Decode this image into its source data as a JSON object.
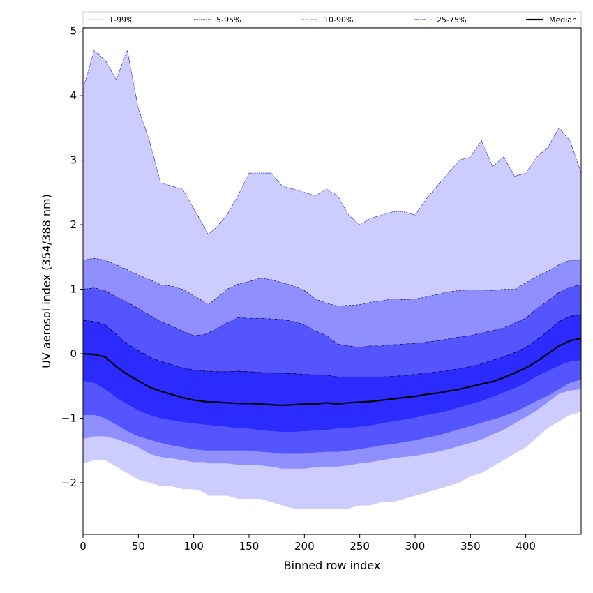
{
  "chart_data": {
    "type": "area",
    "xlabel": "Binned row index",
    "ylabel": "UV aerosol index (354/388 nm)",
    "xlim": [
      0,
      450
    ],
    "ylim": [
      -2.8,
      5.05
    ],
    "xticks": [
      0,
      50,
      100,
      150,
      200,
      250,
      300,
      350,
      400
    ],
    "yticks": [
      -2,
      -1,
      0,
      1,
      2,
      3,
      4,
      5
    ],
    "ytick_labels": [
      "−2",
      "−1",
      "0",
      "1",
      "2",
      "3",
      "4",
      "5"
    ],
    "grid": false,
    "legend_position": "top, spanning width",
    "legend": [
      {
        "label": "1-99%",
        "color": "#ccccff",
        "style": "solid"
      },
      {
        "label": "5-95%",
        "color": "#0000cc",
        "style": "dotted"
      },
      {
        "label": "10-90%",
        "color": "#8f8fff",
        "style": "dashed"
      },
      {
        "label": "25-75%",
        "color": "#5555ff",
        "style": "dashdot"
      },
      {
        "label": "Median",
        "color": "#000000",
        "style": "solid"
      }
    ],
    "x": [
      0,
      10,
      20,
      30,
      40,
      50,
      60,
      70,
      80,
      90,
      100,
      110,
      113,
      120,
      130,
      140,
      150,
      160,
      170,
      180,
      190,
      200,
      210,
      220,
      230,
      240,
      250,
      260,
      270,
      280,
      290,
      300,
      310,
      320,
      330,
      340,
      350,
      360,
      370,
      380,
      390,
      400,
      410,
      420,
      430,
      440,
      450
    ],
    "bands": [
      {
        "name": "1-99%",
        "color": "#ccccff",
        "upper": [
          4.1,
          4.7,
          4.55,
          4.25,
          4.7,
          3.8,
          3.3,
          2.65,
          2.6,
          2.55,
          2.25,
          1.95,
          1.85,
          1.95,
          2.15,
          2.45,
          2.8,
          2.8,
          2.8,
          2.6,
          2.55,
          2.5,
          2.45,
          2.55,
          2.45,
          2.15,
          2.0,
          2.1,
          2.15,
          2.2,
          2.2,
          2.15,
          2.4,
          2.6,
          2.8,
          3.0,
          3.05,
          3.3,
          2.9,
          3.05,
          2.75,
          2.8,
          3.05,
          3.2,
          3.5,
          3.3,
          2.8
        ],
        "lower": [
          -1.7,
          -1.65,
          -1.65,
          -1.75,
          -1.85,
          -1.95,
          -2.0,
          -2.05,
          -2.05,
          -2.1,
          -2.1,
          -2.15,
          -2.2,
          -2.2,
          -2.2,
          -2.25,
          -2.25,
          -2.25,
          -2.3,
          -2.35,
          -2.4,
          -2.4,
          -2.4,
          -2.4,
          -2.4,
          -2.4,
          -2.35,
          -2.35,
          -2.3,
          -2.3,
          -2.25,
          -2.2,
          -2.15,
          -2.1,
          -2.05,
          -2.0,
          -1.9,
          -1.85,
          -1.75,
          -1.65,
          -1.55,
          -1.45,
          -1.3,
          -1.15,
          -1.05,
          -0.95,
          -0.9
        ]
      },
      {
        "name": "5-95%",
        "color": "#8f8fff",
        "upper": [
          1.45,
          1.48,
          1.45,
          1.38,
          1.3,
          1.22,
          1.15,
          1.07,
          1.05,
          1.0,
          0.9,
          0.8,
          0.76,
          0.85,
          1.0,
          1.08,
          1.12,
          1.17,
          1.15,
          1.1,
          1.05,
          0.98,
          0.85,
          0.78,
          0.74,
          0.75,
          0.76,
          0.8,
          0.82,
          0.85,
          0.84,
          0.85,
          0.88,
          0.92,
          0.96,
          0.98,
          0.99,
          0.99,
          0.98,
          1.0,
          1.0,
          1.1,
          1.2,
          1.28,
          1.38,
          1.45,
          1.45
        ],
        "lower": [
          -1.32,
          -1.28,
          -1.28,
          -1.32,
          -1.38,
          -1.45,
          -1.55,
          -1.6,
          -1.62,
          -1.65,
          -1.68,
          -1.68,
          -1.7,
          -1.7,
          -1.7,
          -1.72,
          -1.72,
          -1.73,
          -1.75,
          -1.78,
          -1.78,
          -1.78,
          -1.76,
          -1.75,
          -1.75,
          -1.73,
          -1.7,
          -1.68,
          -1.65,
          -1.62,
          -1.6,
          -1.58,
          -1.55,
          -1.52,
          -1.48,
          -1.43,
          -1.38,
          -1.33,
          -1.25,
          -1.18,
          -1.08,
          -0.98,
          -0.88,
          -0.75,
          -0.62,
          -0.57,
          -0.55
        ]
      },
      {
        "name": "10-90%",
        "color": "#5555ff",
        "upper": [
          1.0,
          1.02,
          0.98,
          0.88,
          0.8,
          0.7,
          0.6,
          0.5,
          0.43,
          0.35,
          0.28,
          0.3,
          0.32,
          0.38,
          0.48,
          0.56,
          0.55,
          0.55,
          0.54,
          0.53,
          0.5,
          0.45,
          0.35,
          0.28,
          0.15,
          0.12,
          0.1,
          0.12,
          0.12,
          0.14,
          0.15,
          0.16,
          0.18,
          0.2,
          0.23,
          0.26,
          0.28,
          0.32,
          0.36,
          0.4,
          0.48,
          0.55,
          0.7,
          0.82,
          0.95,
          1.03,
          1.07
        ],
        "lower": [
          -0.95,
          -0.95,
          -1.0,
          -1.1,
          -1.2,
          -1.28,
          -1.33,
          -1.38,
          -1.42,
          -1.45,
          -1.48,
          -1.5,
          -1.5,
          -1.5,
          -1.5,
          -1.5,
          -1.5,
          -1.52,
          -1.53,
          -1.55,
          -1.55,
          -1.55,
          -1.53,
          -1.52,
          -1.52,
          -1.5,
          -1.48,
          -1.45,
          -1.42,
          -1.4,
          -1.37,
          -1.34,
          -1.3,
          -1.27,
          -1.22,
          -1.17,
          -1.12,
          -1.07,
          -1.02,
          -0.97,
          -0.9,
          -0.82,
          -0.73,
          -0.65,
          -0.55,
          -0.45,
          -0.4
        ]
      },
      {
        "name": "25-75%",
        "color": "#2b2bff",
        "upper": [
          0.52,
          0.5,
          0.45,
          0.3,
          0.15,
          0.05,
          -0.05,
          -0.12,
          -0.17,
          -0.22,
          -0.25,
          -0.27,
          -0.27,
          -0.28,
          -0.28,
          -0.27,
          -0.28,
          -0.29,
          -0.3,
          -0.3,
          -0.31,
          -0.32,
          -0.33,
          -0.33,
          -0.36,
          -0.36,
          -0.36,
          -0.36,
          -0.36,
          -0.35,
          -0.34,
          -0.32,
          -0.3,
          -0.28,
          -0.26,
          -0.23,
          -0.2,
          -0.16,
          -0.1,
          -0.05,
          0.02,
          0.1,
          0.22,
          0.35,
          0.5,
          0.58,
          0.6
        ],
        "lower": [
          -0.42,
          -0.45,
          -0.55,
          -0.68,
          -0.78,
          -0.88,
          -0.95,
          -1.0,
          -1.03,
          -1.06,
          -1.08,
          -1.1,
          -1.1,
          -1.12,
          -1.13,
          -1.15,
          -1.16,
          -1.18,
          -1.2,
          -1.21,
          -1.21,
          -1.2,
          -1.19,
          -1.18,
          -1.16,
          -1.15,
          -1.13,
          -1.11,
          -1.08,
          -1.05,
          -1.02,
          -0.99,
          -0.95,
          -0.92,
          -0.88,
          -0.83,
          -0.78,
          -0.73,
          -0.67,
          -0.6,
          -0.53,
          -0.45,
          -0.35,
          -0.27,
          -0.18,
          -0.12,
          -0.1
        ]
      }
    ],
    "series": [
      {
        "name": "Median",
        "color": "#000000",
        "values": [
          0.0,
          -0.01,
          -0.05,
          -0.2,
          -0.32,
          -0.42,
          -0.52,
          -0.58,
          -0.63,
          -0.68,
          -0.72,
          -0.74,
          -0.75,
          -0.75,
          -0.76,
          -0.77,
          -0.77,
          -0.78,
          -0.79,
          -0.8,
          -0.79,
          -0.78,
          -0.78,
          -0.76,
          -0.78,
          -0.76,
          -0.75,
          -0.74,
          -0.72,
          -0.7,
          -0.68,
          -0.66,
          -0.63,
          -0.61,
          -0.58,
          -0.55,
          -0.51,
          -0.47,
          -0.43,
          -0.37,
          -0.3,
          -0.22,
          -0.12,
          0.0,
          0.12,
          0.2,
          0.24
        ]
      }
    ]
  }
}
